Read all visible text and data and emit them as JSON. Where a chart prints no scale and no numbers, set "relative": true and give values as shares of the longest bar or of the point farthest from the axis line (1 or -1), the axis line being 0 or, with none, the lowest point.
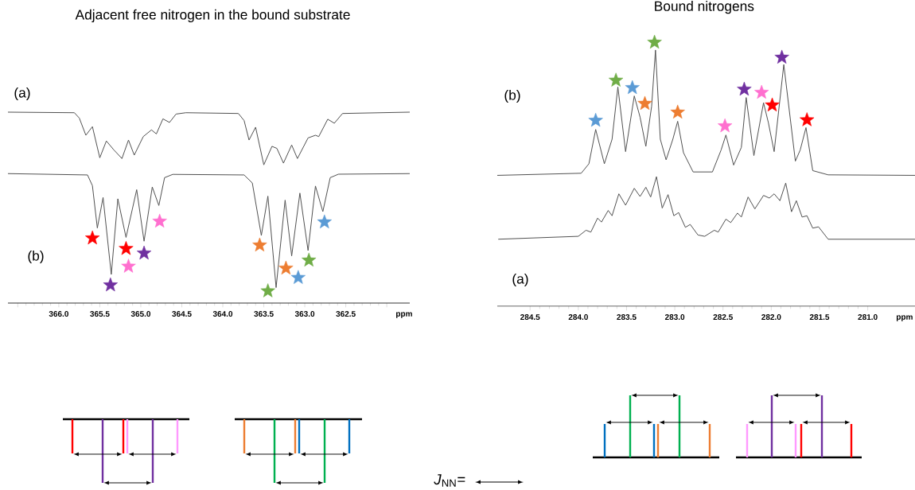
{
  "chart_data": [
    {
      "type": "line",
      "title": "Adjacent free nitrogen in the bound substrate",
      "xlabel": "ppm",
      "relative": true,
      "xlim": [
        366.62,
        361.72
      ],
      "xticks": [
        {
          "value": 366.5,
          "label": null
        },
        {
          "value": 366.0,
          "label": "366.0"
        },
        {
          "value": 365.5,
          "label": "365.5"
        },
        {
          "value": 365.0,
          "label": "365.0"
        },
        {
          "value": 364.5,
          "label": "364.5"
        },
        {
          "value": 364.0,
          "label": "364.0"
        },
        {
          "value": 363.5,
          "label": "363.5"
        },
        {
          "value": 363.0,
          "label": "363.0"
        },
        {
          "value": 362.5,
          "label": "362.5"
        },
        {
          "value": 362.0,
          "label": null
        }
      ],
      "annotations": [
        "(a)",
        "(b)"
      ],
      "series": [
        {
          "type": "line",
          "color": "#505050",
          "x": [
            366.62,
            365.81,
            365.75,
            365.67,
            365.59,
            365.5,
            365.42,
            365.33,
            365.23,
            365.15,
            365.08,
            364.97,
            364.87,
            364.81,
            364.73,
            364.65,
            364.57,
            364.45,
            363.81,
            363.74,
            363.68,
            363.6,
            363.5,
            363.4,
            363.34,
            363.26,
            363.16,
            363.09,
            362.96,
            362.87,
            362.83,
            362.72,
            362.64,
            362.54,
            361.72
          ],
          "values": [
            1.0,
            0.997,
            0.969,
            0.879,
            0.924,
            0.761,
            0.849,
            0.803,
            0.757,
            0.854,
            0.775,
            0.872,
            0.907,
            0.886,
            0.965,
            0.946,
            0.99,
            0.997,
            0.993,
            0.956,
            0.854,
            0.921,
            0.724,
            0.821,
            0.81,
            0.733,
            0.828,
            0.757,
            0.865,
            0.879,
            0.872,
            0.963,
            0.942,
            0.993,
            1.0
          ]
        },
        {
          "type": "line",
          "color": "#505050",
          "x": [
            366.62,
            365.65,
            365.59,
            365.53,
            365.46,
            365.36,
            365.28,
            365.18,
            365.05,
            364.96,
            364.86,
            364.78,
            364.71,
            364.61,
            363.74,
            363.64,
            363.53,
            363.45,
            363.35,
            363.24,
            363.16,
            363.06,
            362.96,
            362.87,
            362.78,
            362.69,
            362.59,
            361.72
          ],
          "values": [
            0.678,
            0.671,
            0.615,
            0.393,
            0.553,
            0.15,
            0.546,
            0.344,
            0.594,
            0.324,
            0.608,
            0.511,
            0.657,
            0.674,
            0.671,
            0.629,
            0.354,
            0.56,
            0.081,
            0.539,
            0.247,
            0.576,
            0.275,
            0.613,
            0.479,
            0.657,
            0.675,
            0.678
          ]
        },
        {
          "type": "scatter",
          "marker": "star",
          "color": "#ff0000",
          "x": [
            365.59,
            365.18
          ],
          "values": [
            0.34,
            0.285
          ]
        },
        {
          "type": "scatter",
          "marker": "star",
          "color": "#ff6fcf",
          "x": [
            364.77,
            365.15
          ],
          "values": [
            0.428,
            0.192
          ]
        },
        {
          "type": "scatter",
          "marker": "star",
          "color": "#7030a0",
          "x": [
            365.37,
            364.96
          ],
          "values": [
            0.094,
            0.261
          ]
        },
        {
          "type": "scatter",
          "marker": "star",
          "color": "#ed7d31",
          "x": [
            363.55,
            363.23
          ],
          "values": [
            0.303,
            0.182
          ]
        },
        {
          "type": "scatter",
          "marker": "star",
          "color": "#70ad47",
          "x": [
            363.45,
            362.95
          ],
          "values": [
            0.063,
            0.224
          ]
        },
        {
          "type": "scatter",
          "marker": "star",
          "color": "#5b9bd5",
          "x": [
            362.76,
            363.08
          ],
          "values": [
            0.424,
            0.133
          ]
        }
      ]
    },
    {
      "type": "line",
      "title": "Bound nitrogens",
      "xlabel": "ppm",
      "relative": true,
      "xlim": [
        284.84,
        280.51
      ],
      "xticks": [
        284.5,
        {
          "value": 284.0,
          "label": "284.0"
        },
        283.5,
        {
          "value": 283.0,
          "label": "283.0"
        },
        282.5,
        {
          "value": 282.0,
          "label": "282.0"
        },
        281.5,
        {
          "value": 281.0,
          "label": "281.0"
        }
      ],
      "annotations": [
        "(b)",
        "(a)",
        "*J*$_{NN}$="
      ],
      "series": [
        {
          "type": "line",
          "color": "#505050",
          "x": [
            284.84,
            283.97,
            283.89,
            283.82,
            283.73,
            283.65,
            283.59,
            283.51,
            283.42,
            283.36,
            283.3,
            283.24,
            283.2,
            283.15,
            283.09,
            283.02,
            282.97,
            282.91,
            282.81,
            282.61,
            282.52,
            282.47,
            282.39,
            282.31,
            282.26,
            282.18,
            282.08,
            282.03,
            281.97,
            281.87,
            281.75,
            281.7,
            281.64,
            281.57,
            281.41,
            280.51
          ],
          "values": [
            0.496,
            0.504,
            0.54,
            0.67,
            0.54,
            0.633,
            0.831,
            0.586,
            0.797,
            0.717,
            0.606,
            0.758,
            0.971,
            0.633,
            0.555,
            0.633,
            0.701,
            0.582,
            0.509,
            0.509,
            0.592,
            0.649,
            0.535,
            0.602,
            0.791,
            0.571,
            0.771,
            0.696,
            0.586,
            0.916,
            0.55,
            0.592,
            0.677,
            0.514,
            0.498,
            0.496
          ]
        },
        {
          "type": "line",
          "color": "#505050",
          "x": [
            284.83,
            284.0,
            283.92,
            283.87,
            283.8,
            283.76,
            283.69,
            283.65,
            283.58,
            283.51,
            283.42,
            283.36,
            283.3,
            283.25,
            283.19,
            283.13,
            283.07,
            283.01,
            282.96,
            282.89,
            282.84,
            282.76,
            282.69,
            282.59,
            282.55,
            282.47,
            282.42,
            282.35,
            282.31,
            282.24,
            282.17,
            282.08,
            282.02,
            281.97,
            281.91,
            281.85,
            281.79,
            281.74,
            281.68,
            281.63,
            281.57,
            281.51,
            281.41,
            280.51
          ],
          "values": [
            0.254,
            0.265,
            0.288,
            0.281,
            0.334,
            0.319,
            0.363,
            0.343,
            0.426,
            0.383,
            0.447,
            0.416,
            0.451,
            0.414,
            0.491,
            0.372,
            0.423,
            0.343,
            0.355,
            0.299,
            0.31,
            0.27,
            0.265,
            0.288,
            0.281,
            0.33,
            0.317,
            0.353,
            0.338,
            0.414,
            0.369,
            0.42,
            0.41,
            0.426,
            0.4,
            0.467,
            0.358,
            0.4,
            0.338,
            0.343,
            0.296,
            0.301,
            0.254,
            0.254
          ]
        },
        {
          "type": "scatter",
          "marker": "star",
          "color": "#5b9bd5",
          "x": [
            283.82,
            283.44
          ],
          "values": [
            0.704,
            0.828
          ]
        },
        {
          "type": "scatter",
          "marker": "star",
          "color": "#70ad47",
          "x": [
            283.61,
            283.21
          ],
          "values": [
            0.856,
            1.0
          ]
        },
        {
          "type": "scatter",
          "marker": "star",
          "color": "#ed7d31",
          "x": [
            283.31,
            282.97
          ],
          "values": [
            0.768,
            0.735
          ]
        },
        {
          "type": "scatter",
          "marker": "star",
          "color": "#ff6fcf",
          "x": [
            282.48,
            282.1
          ],
          "values": [
            0.683,
            0.81
          ]
        },
        {
          "type": "scatter",
          "marker": "star",
          "color": "#7030a0",
          "x": [
            282.28,
            281.89
          ],
          "values": [
            0.822,
            0.943
          ]
        },
        {
          "type": "scatter",
          "marker": "star",
          "color": "#ff0000",
          "x": [
            281.99,
            281.63
          ],
          "values": [
            0.762,
            0.706
          ]
        }
      ]
    }
  ]
}
